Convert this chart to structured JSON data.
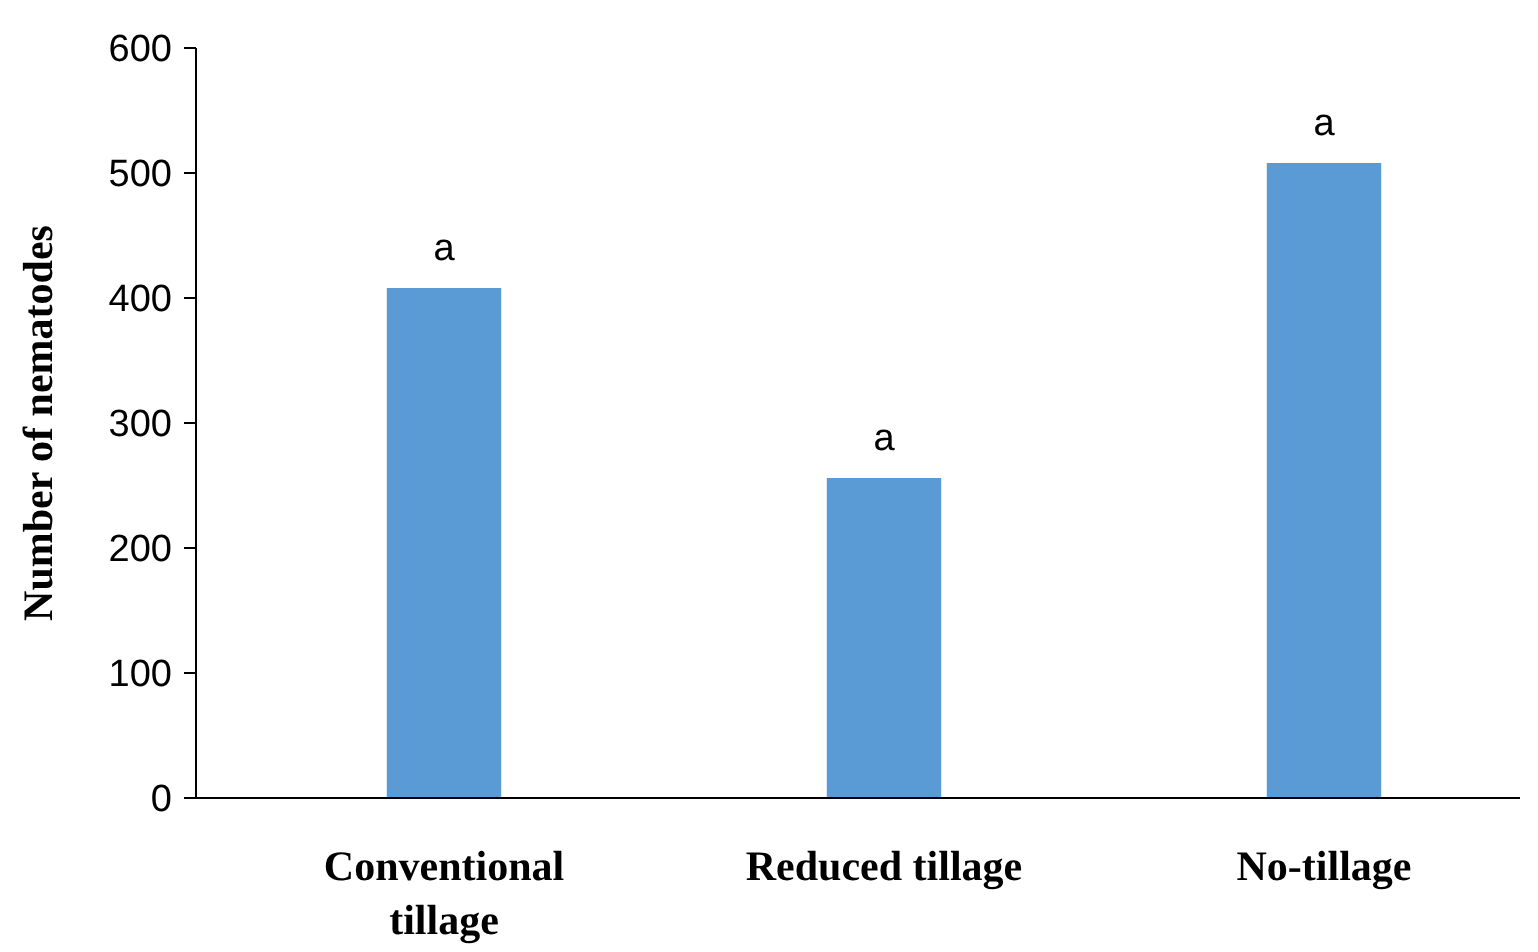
{
  "chart_data": {
    "type": "bar",
    "ylabel": "Number of nematodes",
    "categories": [
      "Conventional tillage",
      "Reduced tillage",
      "No-tillage"
    ],
    "values": [
      408,
      256,
      508
    ],
    "color": "#5b9bd5",
    "ylim": [
      0,
      600
    ],
    "yticks": [
      0,
      100,
      200,
      300,
      400,
      500,
      600
    ],
    "grid": false,
    "annotations": [
      {
        "text": "a",
        "x": "Conventional tillage",
        "y": 408
      },
      {
        "text": "a",
        "x": "Reduced tillage",
        "y": 256
      },
      {
        "text": "a",
        "x": "No-tillage",
        "y": 508
      }
    ]
  }
}
